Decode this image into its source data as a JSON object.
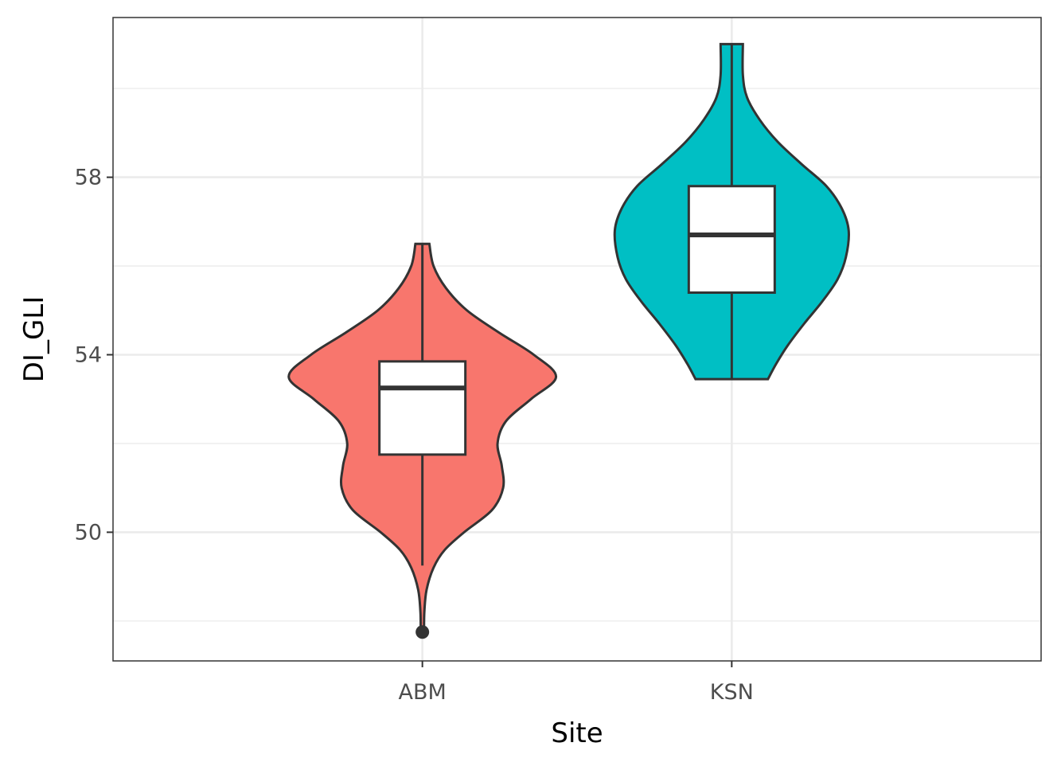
{
  "chart_data": {
    "type": "violin",
    "xlabel": "Site",
    "ylabel": "DI_GLI",
    "ylim": [
      47.1,
      61.6
    ],
    "y_ticks": [
      50,
      54,
      58
    ],
    "y_tick_labels": [
      "50",
      "54",
      "58"
    ],
    "grid": true,
    "legend": "none",
    "categories": [
      "ABM",
      "KSN"
    ],
    "series": [
      {
        "category": "ABM",
        "color": "#F8766D",
        "box": {
          "q1": 51.75,
          "median": 53.25,
          "q3": 53.85,
          "whisker_low": 49.25,
          "whisker_high": 56.5
        },
        "outliers": [
          47.75
        ],
        "violin_range": [
          47.75,
          56.5
        ],
        "density": [
          [
            47.75,
            0.012
          ],
          [
            48.2,
            0.014
          ],
          [
            48.7,
            0.03
          ],
          [
            49.2,
            0.08
          ],
          [
            49.6,
            0.16
          ],
          [
            50.0,
            0.3
          ],
          [
            50.5,
            0.5
          ],
          [
            51.0,
            0.58
          ],
          [
            51.5,
            0.57
          ],
          [
            52.0,
            0.54
          ],
          [
            52.5,
            0.6
          ],
          [
            53.0,
            0.78
          ],
          [
            53.5,
            0.96
          ],
          [
            54.0,
            0.8
          ],
          [
            54.5,
            0.55
          ],
          [
            55.0,
            0.32
          ],
          [
            55.5,
            0.17
          ],
          [
            56.0,
            0.08
          ],
          [
            56.5,
            0.05
          ]
        ]
      },
      {
        "category": "KSN",
        "color": "#00BFC4",
        "box": {
          "q1": 55.4,
          "median": 56.7,
          "q3": 57.8,
          "whisker_low": 53.45,
          "whisker_high": 61.0
        },
        "outliers": [],
        "violin_range": [
          53.45,
          61.0
        ],
        "density": [
          [
            53.45,
            0.26
          ],
          [
            53.8,
            0.32
          ],
          [
            54.2,
            0.4
          ],
          [
            54.7,
            0.52
          ],
          [
            55.2,
            0.65
          ],
          [
            55.7,
            0.76
          ],
          [
            56.2,
            0.82
          ],
          [
            56.8,
            0.84
          ],
          [
            57.3,
            0.79
          ],
          [
            57.8,
            0.68
          ],
          [
            58.3,
            0.5
          ],
          [
            58.8,
            0.33
          ],
          [
            59.3,
            0.2
          ],
          [
            59.8,
            0.11
          ],
          [
            60.3,
            0.08
          ],
          [
            61.0,
            0.08
          ]
        ]
      }
    ]
  }
}
